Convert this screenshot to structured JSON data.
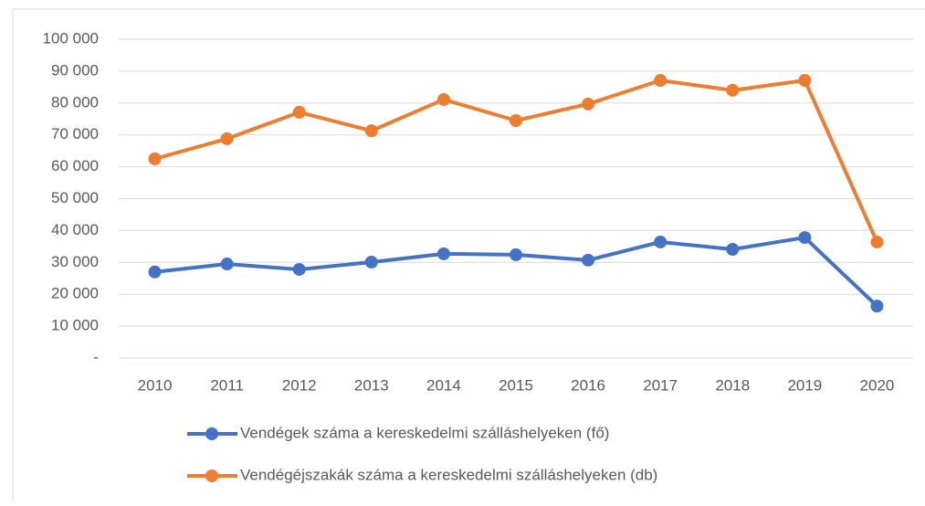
{
  "chart_data": {
    "type": "line",
    "categories": [
      "2010",
      "2011",
      "2012",
      "2013",
      "2014",
      "2015",
      "2016",
      "2017",
      "2018",
      "2019",
      "2020"
    ],
    "series": [
      {
        "name": "Vendégek száma a kereskedelmi szálláshelyeken (fő)",
        "color": "#4472c4",
        "values": [
          27000,
          29500,
          27800,
          30100,
          32700,
          32400,
          30700,
          36400,
          34100,
          37800,
          16300
        ]
      },
      {
        "name": "Vendégéjszakák száma a kereskedelmi szálláshelyeken (db)",
        "color": "#ed7d31",
        "values": [
          62500,
          68800,
          77100,
          71300,
          81100,
          74500,
          79700,
          87100,
          84000,
          87100,
          36400
        ]
      }
    ],
    "ylim": [
      0,
      100000
    ],
    "yticks": [
      {
        "value": 0,
        "label": "-"
      },
      {
        "value": 10000,
        "label": "10 000"
      },
      {
        "value": 20000,
        "label": "20 000"
      },
      {
        "value": 30000,
        "label": "30 000"
      },
      {
        "value": 40000,
        "label": "40 000"
      },
      {
        "value": 50000,
        "label": "50 000"
      },
      {
        "value": 60000,
        "label": "60 000"
      },
      {
        "value": 70000,
        "label": "70 000"
      },
      {
        "value": 80000,
        "label": "80 000"
      },
      {
        "value": 90000,
        "label": "90 000"
      },
      {
        "value": 100000,
        "label": "100 000"
      }
    ],
    "grid": true,
    "legend": "bottom"
  }
}
